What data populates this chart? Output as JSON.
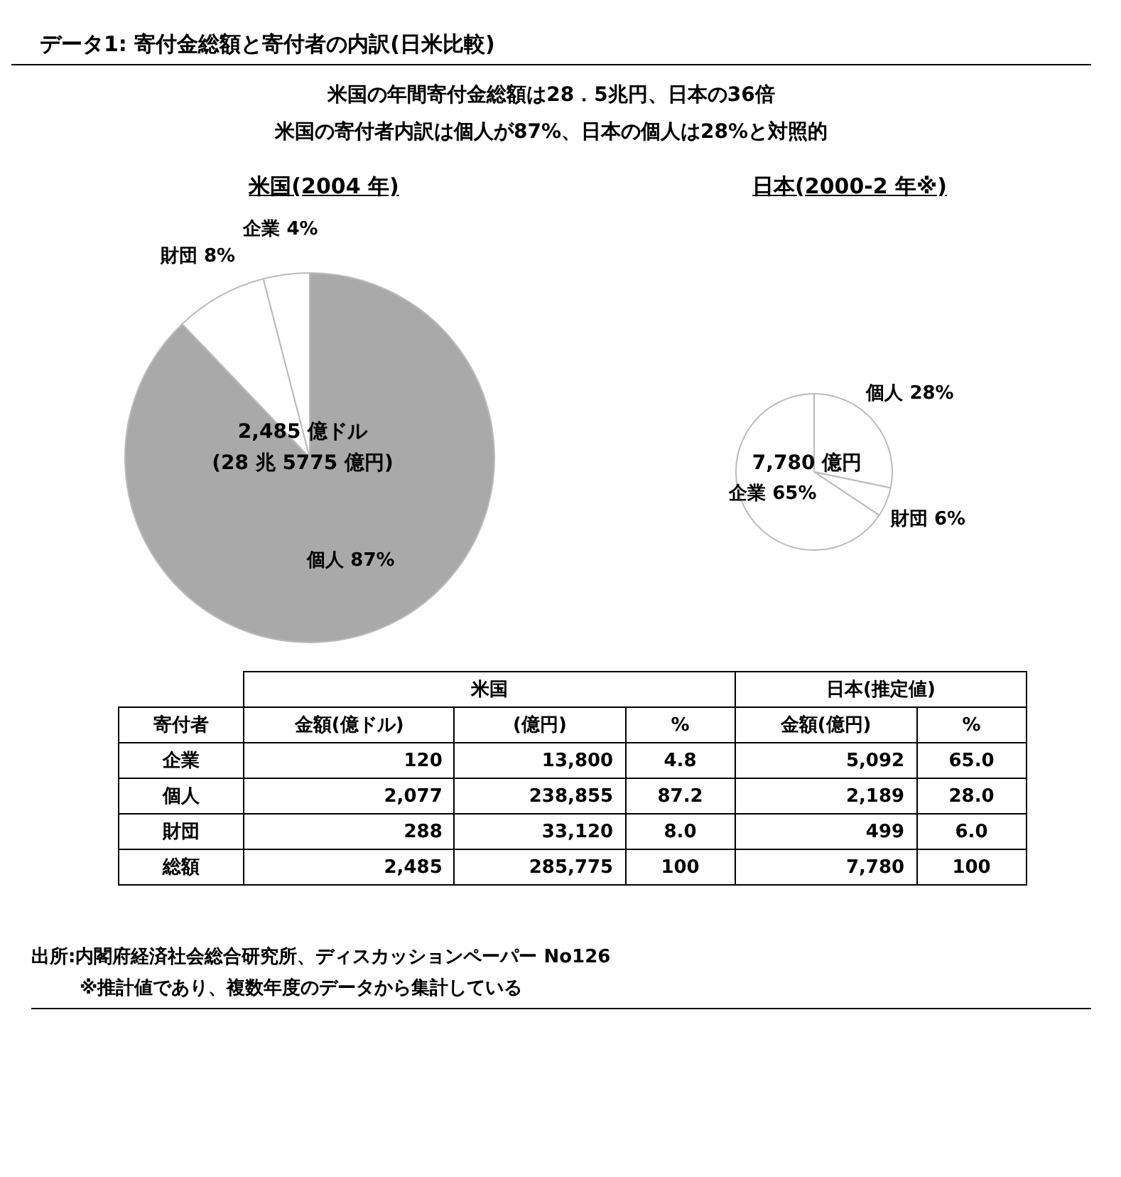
{
  "chart_data": [
    {
      "type": "other",
      "title": "データ1: 寄付金総額と寄付者の内訳(日米比較)",
      "subtitle": "米国の年間寄付金総額は28．5兆円、日本の36倍",
      "annotations": [
        "米国の寄付者内訳は個人が87%、日本の個人は28%と対照的"
      ]
    },
    {
      "type": "pie",
      "title": "米国(2004 年)",
      "categories": [
        "個人",
        "財団",
        "企業"
      ],
      "values": [
        87,
        8,
        4
      ],
      "value_labels": [
        "87%",
        "8%",
        "4%"
      ],
      "colors": [
        "#a9a9a9",
        "#ffffff",
        "#ffffff"
      ],
      "annotations": [
        "2,485 億ドル",
        "(28 兆 5775 億円)"
      ]
    },
    {
      "type": "pie",
      "title": "日本(2000-2 年※)",
      "categories": [
        "個人",
        "財団",
        "企業"
      ],
      "values": [
        28,
        6,
        65
      ],
      "value_labels": [
        "28%",
        "6%",
        "65%"
      ],
      "colors": [
        "#ffffff",
        "#ffffff",
        "#ffffff"
      ],
      "annotations": [
        "7,780 億円"
      ]
    },
    {
      "type": "other",
      "categories": [
        "企業",
        "個人",
        "財団",
        "総額"
      ],
      "series": [
        {
          "name": "金額(億ドル)",
          "values": [
            120,
            2077,
            288,
            2485
          ],
          "value_labels": [
            "120",
            "2,077",
            "288",
            "2,485"
          ]
        },
        {
          "name": "(億円)",
          "values": [
            13800,
            238855,
            33120,
            285775
          ],
          "value_labels": [
            "13,800",
            "238,855",
            "33,120",
            "285,775"
          ]
        },
        {
          "name": "%",
          "values": [
            4.8,
            87.2,
            8.0,
            100
          ],
          "value_labels": [
            "4.8",
            "87.2",
            "8.0",
            "100"
          ]
        },
        {
          "name": "金額(億円)",
          "values": [
            5092,
            2189,
            499,
            7780
          ],
          "value_labels": [
            "5,092",
            "2,189",
            "499",
            "7,780"
          ]
        },
        {
          "name": "%",
          "values": [
            65.0,
            28.0,
            6.0,
            100
          ],
          "value_labels": [
            "65.0",
            "28.0",
            "6.0",
            "100"
          ]
        }
      ],
      "annotations": [
        "寄付者",
        "米国",
        "日本(推定値)",
        "出所:内閣府経済社会総合研究所、ディスカッションペーパー No126",
        "※推計値であり、複数年度のデータから集計している"
      ]
    }
  ]
}
